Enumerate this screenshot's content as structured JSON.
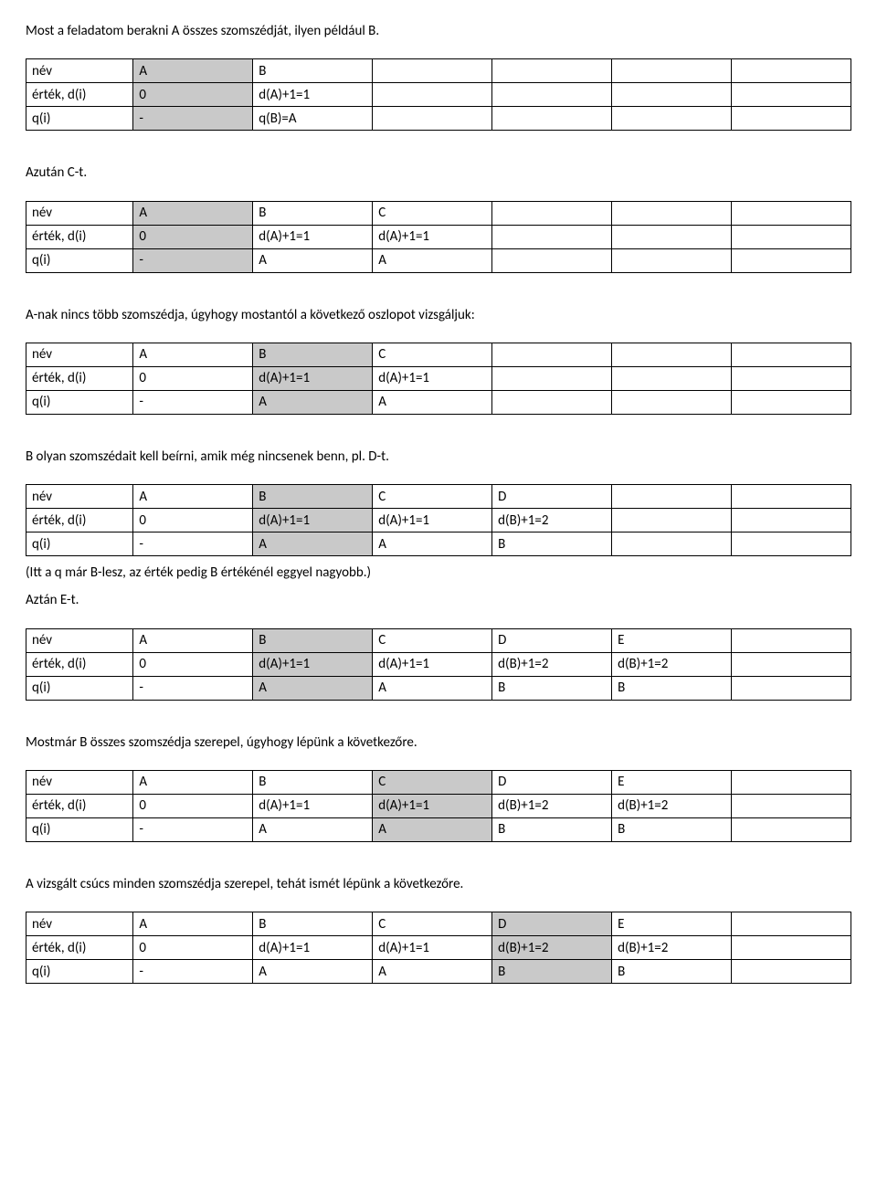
{
  "text": {
    "p1": "Most a feladatom berakni A összes szomszédját, ilyen például B.",
    "p2": "Azután C-t.",
    "p3": "A-nak nincs több szomszédja, úgyhogy mostantól a következő oszlopot vizsgáljuk:",
    "p4": "B olyan szomszédait kell beírni, amik még nincsenek benn, pl. D-t.",
    "p5": "(Itt a q már B-lesz, az érték pedig B értékénél eggyel nagyobb.)",
    "p6": "Aztán E-t.",
    "p7": "Mostmár B összes szomszédja szerepel, úgyhogy lépünk a következőre.",
    "p8": "A vizsgált csúcs minden szomszédja szerepel, tehát ismét lépünk a következőre."
  },
  "rowLabels": [
    "név",
    "érték, d(i)",
    "q(i)"
  ],
  "tables": {
    "t1": {
      "highlightCol": 1,
      "rows": [
        [
          "A",
          "B",
          "",
          "",
          "",
          ""
        ],
        [
          "0",
          "d(A)+1=1",
          "",
          "",
          "",
          ""
        ],
        [
          "-",
          "q(B)=A",
          "",
          "",
          "",
          ""
        ]
      ]
    },
    "t2": {
      "highlightCol": 1,
      "rows": [
        [
          "A",
          "B",
          "C",
          "",
          "",
          ""
        ],
        [
          "0",
          "d(A)+1=1",
          "d(A)+1=1",
          "",
          "",
          ""
        ],
        [
          "-",
          "A",
          "A",
          "",
          "",
          ""
        ]
      ]
    },
    "t3": {
      "highlightCol": 2,
      "rows": [
        [
          "A",
          "B",
          "C",
          "",
          "",
          ""
        ],
        [
          "0",
          "d(A)+1=1",
          "d(A)+1=1",
          "",
          "",
          ""
        ],
        [
          "-",
          "A",
          "A",
          "",
          "",
          ""
        ]
      ]
    },
    "t4": {
      "highlightCol": 2,
      "rows": [
        [
          "A",
          "B",
          "C",
          "D",
          "",
          ""
        ],
        [
          "0",
          "d(A)+1=1",
          "d(A)+1=1",
          "d(B)+1=2",
          "",
          ""
        ],
        [
          "-",
          "A",
          "A",
          "B",
          "",
          ""
        ]
      ]
    },
    "t5": {
      "highlightCol": 2,
      "rows": [
        [
          "A",
          "B",
          "C",
          "D",
          "E",
          ""
        ],
        [
          "0",
          "d(A)+1=1",
          "d(A)+1=1",
          "d(B)+1=2",
          "d(B)+1=2",
          ""
        ],
        [
          "-",
          "A",
          "A",
          "B",
          "B",
          ""
        ]
      ]
    },
    "t6": {
      "highlightCol": 3,
      "rows": [
        [
          "A",
          "B",
          "C",
          "D",
          "E",
          ""
        ],
        [
          "0",
          "d(A)+1=1",
          "d(A)+1=1",
          "d(B)+1=2",
          "d(B)+1=2",
          ""
        ],
        [
          "-",
          "A",
          "A",
          "B",
          "B",
          ""
        ]
      ]
    },
    "t7": {
      "highlightCol": 4,
      "rows": [
        [
          "A",
          "B",
          "C",
          "D",
          "E",
          ""
        ],
        [
          "0",
          "d(A)+1=1",
          "d(A)+1=1",
          "d(B)+1=2",
          "d(B)+1=2",
          ""
        ],
        [
          "-",
          "A",
          "A",
          "B",
          "B",
          ""
        ]
      ]
    }
  }
}
